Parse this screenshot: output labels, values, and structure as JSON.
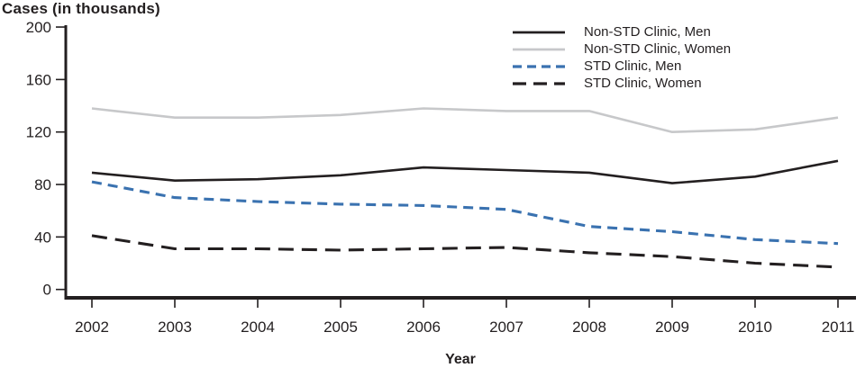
{
  "chart_data": {
    "type": "line",
    "title": "Cases (in thousands)",
    "xlabel": "Year",
    "x": [
      2002,
      2003,
      2004,
      2005,
      2006,
      2007,
      2008,
      2009,
      2010,
      2011
    ],
    "ylim": [
      0,
      200
    ],
    "yticks": [
      0,
      40,
      80,
      120,
      160,
      200
    ],
    "grid": false,
    "legend_position": "top-right-inside",
    "axis_color": "#231f20",
    "series": [
      {
        "name": "Non-STD Clinic, Men",
        "color": "#231f20",
        "style": "solid",
        "values": [
          89,
          83,
          84,
          87,
          93,
          91,
          89,
          81,
          86,
          98
        ]
      },
      {
        "name": "Non-STD Clinic, Women",
        "color": "#c7c8ca",
        "style": "solid",
        "values": [
          138,
          131,
          131,
          133,
          138,
          136,
          136,
          120,
          122,
          131
        ]
      },
      {
        "name": "STD Clinic, Men",
        "color": "#3a72b0",
        "style": "dashed",
        "values": [
          82,
          70,
          67,
          65,
          64,
          61,
          48,
          44,
          38,
          35
        ]
      },
      {
        "name": "STD Clinic, Women",
        "color": "#231f20",
        "style": "long-dash",
        "values": [
          41,
          31,
          31,
          30,
          31,
          32,
          28,
          25,
          20,
          17
        ]
      }
    ]
  }
}
